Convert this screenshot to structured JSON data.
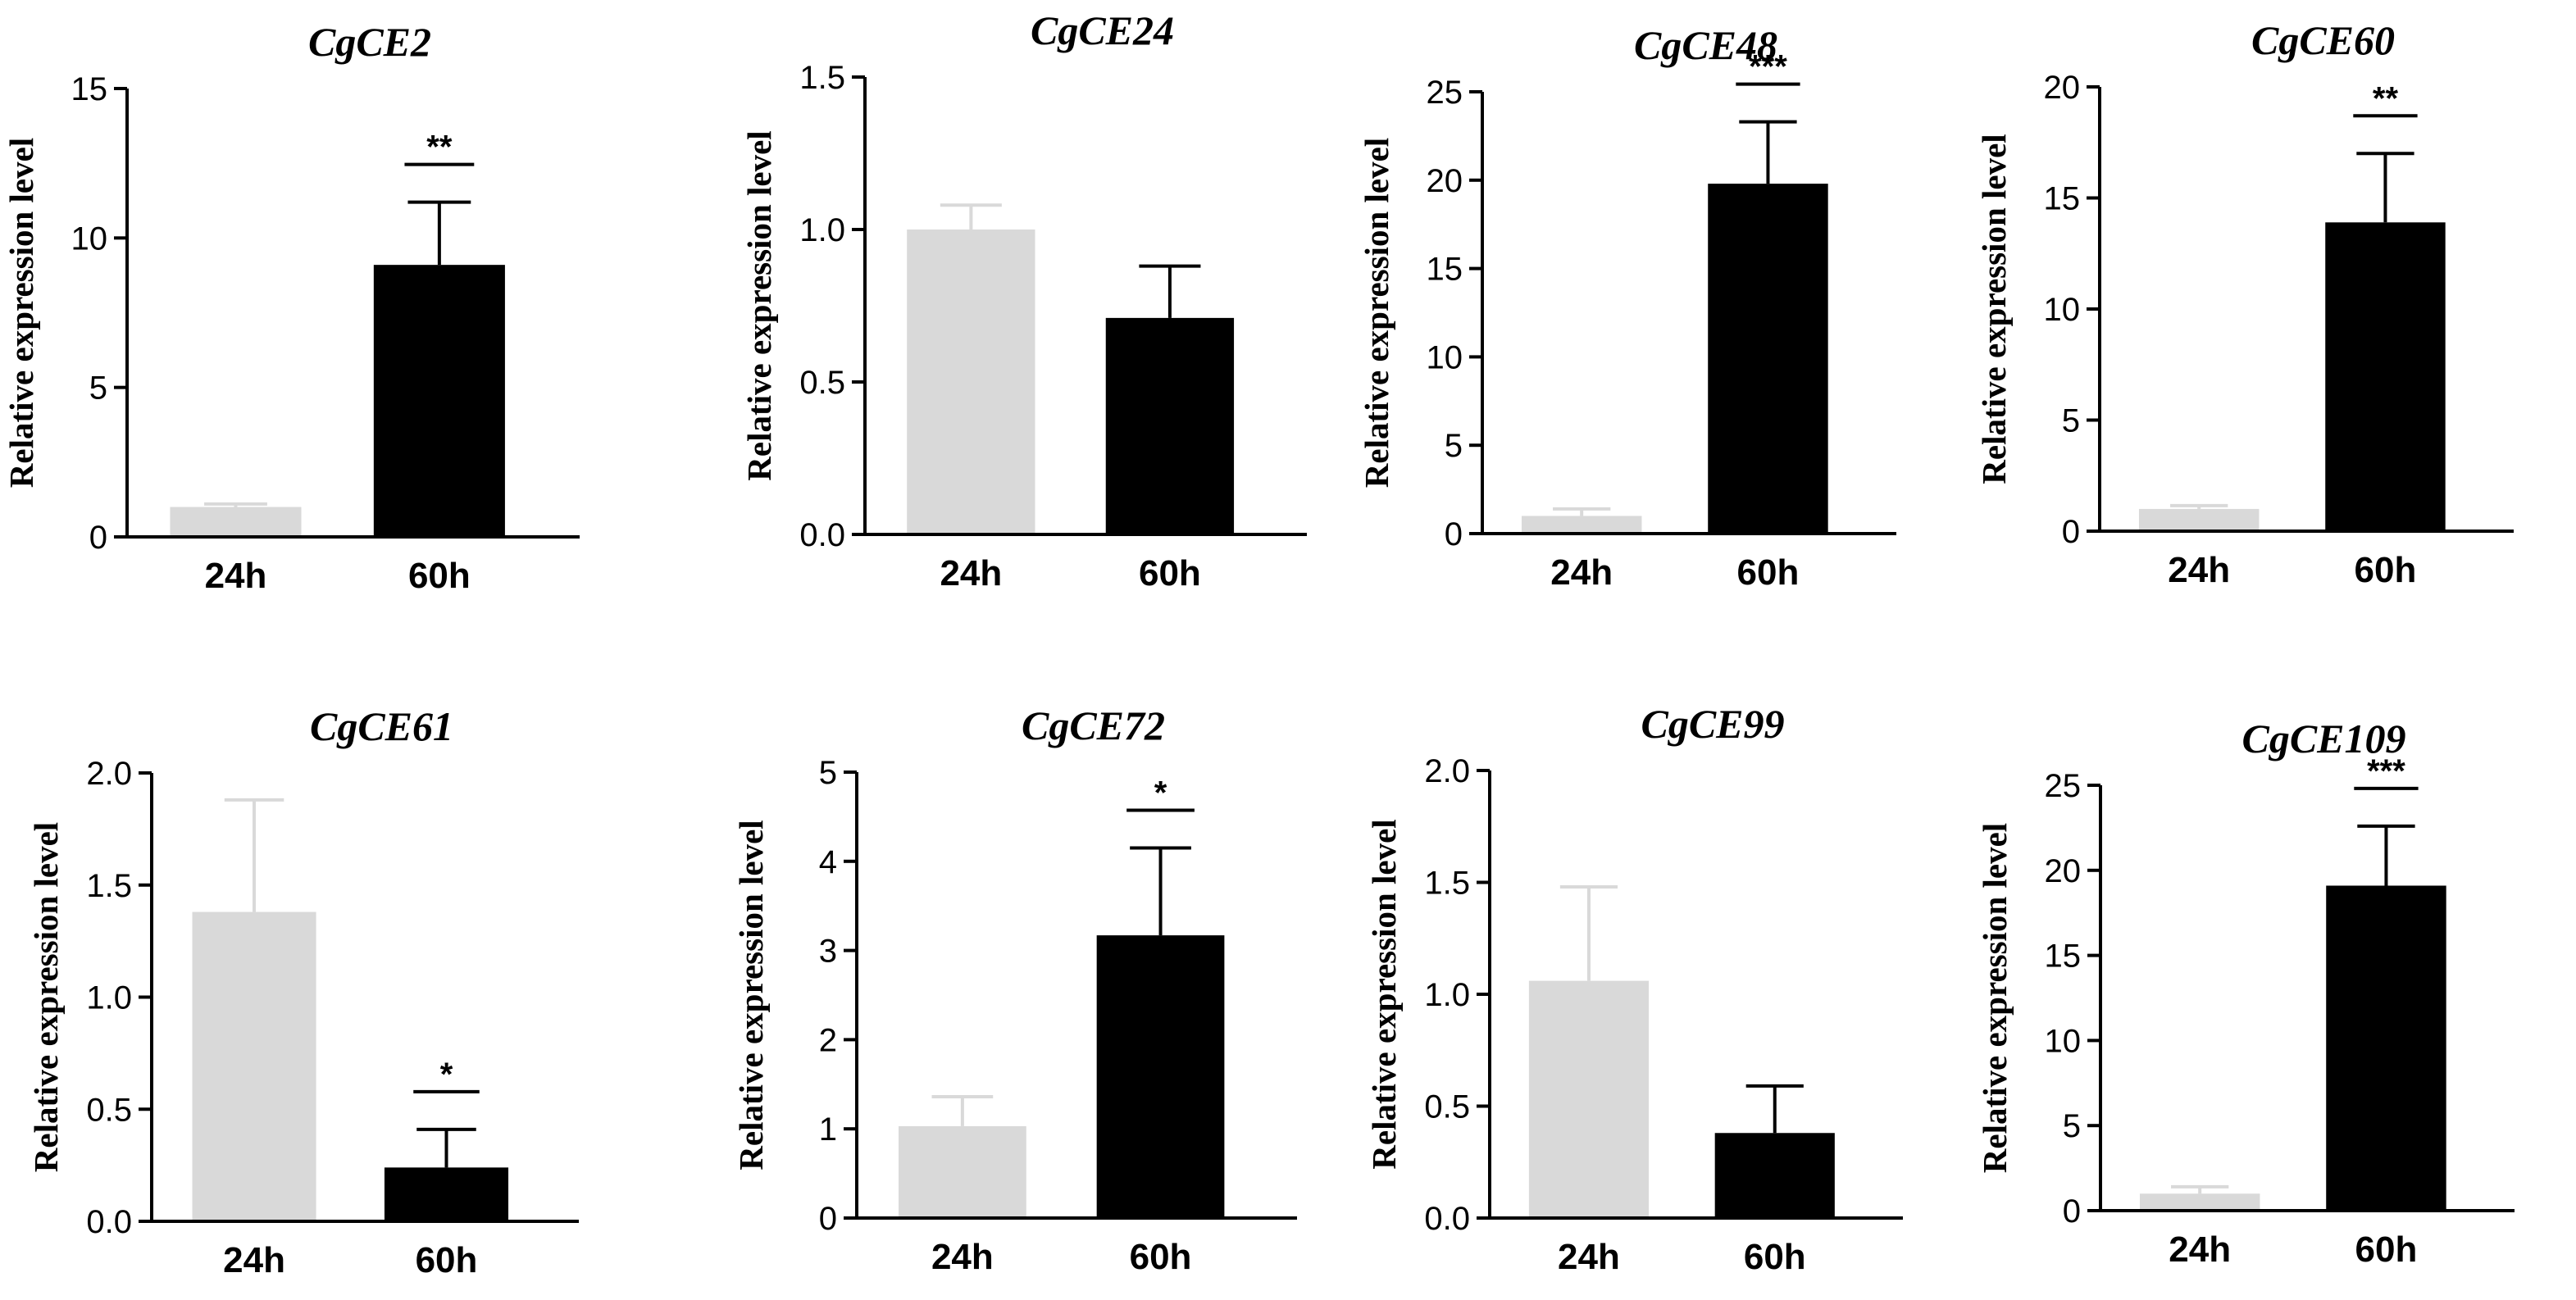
{
  "figure": {
    "colors": {
      "bar_24h": "#d9d9d9",
      "bar_60h": "#000000",
      "axis": "#000000"
    }
  },
  "chart_data": [
    {
      "type": "bar",
      "title": "CgCE2",
      "ylabel": "Relative expression  level",
      "xlabel": "",
      "categories": [
        "24h",
        "60h"
      ],
      "values": [
        1.0,
        9.1
      ],
      "errors": [
        0.1,
        2.1
      ],
      "ylim": [
        0,
        15
      ],
      "yticks": [
        0,
        5,
        10,
        15
      ],
      "ytick_labels": [
        "0",
        "5",
        "10",
        "15"
      ],
      "significance": "**"
    },
    {
      "type": "bar",
      "title": "CgCE24",
      "ylabel": "Relative expression  level",
      "xlabel": "",
      "categories": [
        "24h",
        "60h"
      ],
      "values": [
        1.0,
        0.71
      ],
      "errors": [
        0.08,
        0.17
      ],
      "ylim": [
        0,
        1.5
      ],
      "yticks": [
        0,
        0.5,
        1.0,
        1.5
      ],
      "ytick_labels": [
        "0.0",
        "0.5",
        "1.0",
        "1.5"
      ],
      "significance": ""
    },
    {
      "type": "bar",
      "title": "CgCE48",
      "ylabel": "Relative expression  level",
      "xlabel": "",
      "categories": [
        "24h",
        "60h"
      ],
      "values": [
        1.0,
        19.8
      ],
      "errors": [
        0.4,
        3.5
      ],
      "ylim": [
        0,
        25
      ],
      "yticks": [
        0,
        5,
        10,
        15,
        20,
        25
      ],
      "ytick_labels": [
        "0",
        "5",
        "10",
        "15",
        "20",
        "25"
      ],
      "significance": "***"
    },
    {
      "type": "bar",
      "title": "CgCE60",
      "ylabel": "Relative expression  level",
      "xlabel": "",
      "categories": [
        "24h",
        "60h"
      ],
      "values": [
        1.0,
        13.9
      ],
      "errors": [
        0.15,
        3.1
      ],
      "ylim": [
        0,
        20
      ],
      "yticks": [
        0,
        5,
        10,
        15,
        20
      ],
      "ytick_labels": [
        "0",
        "5",
        "10",
        "15",
        "20"
      ],
      "significance": "**"
    },
    {
      "type": "bar",
      "title": "CgCE61",
      "ylabel": "Relative expression  level",
      "xlabel": "",
      "categories": [
        "24h",
        "60h"
      ],
      "values": [
        1.38,
        0.24
      ],
      "errors": [
        0.5,
        0.17
      ],
      "ylim": [
        0,
        2.0
      ],
      "yticks": [
        0,
        0.5,
        1.0,
        1.5,
        2.0
      ],
      "ytick_labels": [
        "0.0",
        "0.5",
        "1.0",
        "1.5",
        "2.0"
      ],
      "significance": "*"
    },
    {
      "type": "bar",
      "title": "CgCE72",
      "ylabel": "Relative expression  level",
      "xlabel": "",
      "categories": [
        "24h",
        "60h"
      ],
      "values": [
        1.03,
        3.17
      ],
      "errors": [
        0.33,
        0.98
      ],
      "ylim": [
        0,
        5
      ],
      "yticks": [
        0,
        1,
        2,
        3,
        4,
        5
      ],
      "ytick_labels": [
        "0",
        "1",
        "2",
        "3",
        "4",
        "5"
      ],
      "significance": "*"
    },
    {
      "type": "bar",
      "title": "CgCE99",
      "ylabel": "Relative expression  level",
      "xlabel": "",
      "categories": [
        "24h",
        "60h"
      ],
      "values": [
        1.06,
        0.38
      ],
      "errors": [
        0.42,
        0.21
      ],
      "ylim": [
        0,
        2.0
      ],
      "yticks": [
        0,
        0.5,
        1.0,
        1.5,
        2.0
      ],
      "ytick_labels": [
        "0.0",
        "0.5",
        "1.0",
        "1.5",
        "2.0"
      ],
      "significance": ""
    },
    {
      "type": "bar",
      "title": "CgCE109",
      "ylabel": "Relative expression  level",
      "xlabel": "",
      "categories": [
        "24h",
        "60h"
      ],
      "values": [
        1.0,
        19.1
      ],
      "errors": [
        0.4,
        3.5
      ],
      "ylim": [
        0,
        25
      ],
      "yticks": [
        0,
        5,
        10,
        15,
        20,
        25
      ],
      "ytick_labels": [
        "0",
        "5",
        "10",
        "15",
        "20",
        "25"
      ],
      "significance": "***"
    }
  ]
}
